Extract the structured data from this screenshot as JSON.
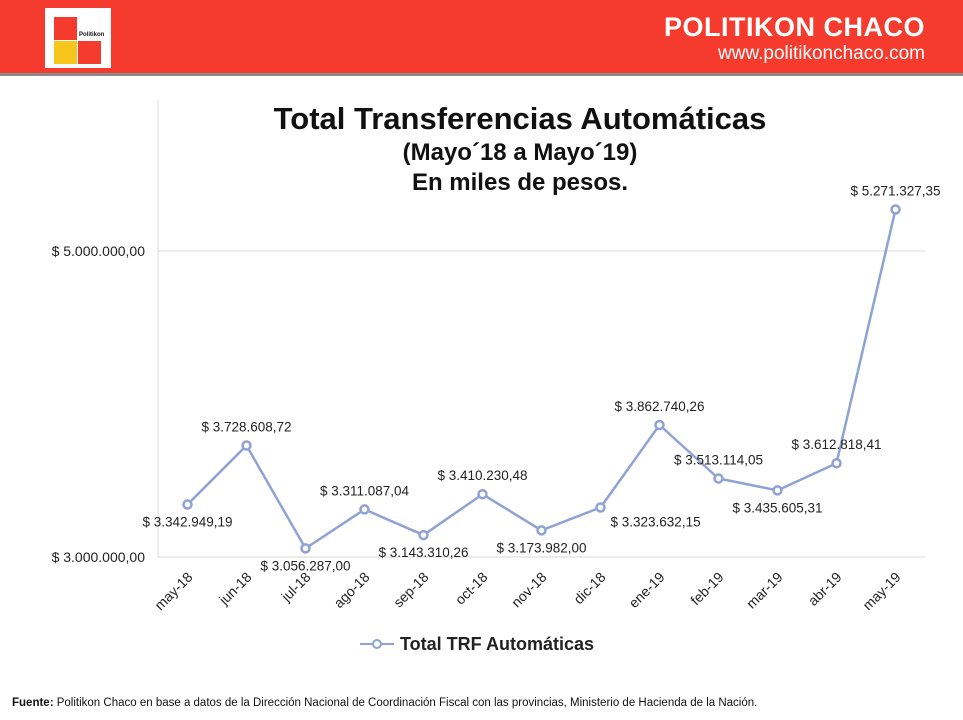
{
  "header": {
    "logo_text": "Politikon",
    "brand_name": "POLITIKON CHACO",
    "brand_url": "www.politikonchaco.com",
    "colors": {
      "header_bg": "#f53b2e",
      "logo_red": "#f53b2e",
      "logo_yellow": "#f8c51c"
    }
  },
  "chart_data": {
    "type": "line",
    "title": "Total Transferencias Automáticas",
    "subtitle": "(Mayo´18 a Mayo´19)",
    "subtitle2": "En miles de pesos.",
    "categories": [
      "may-18",
      "jun-18",
      "jul-18",
      "ago-18",
      "sep-18",
      "oct-18",
      "nov-18",
      "dic-18",
      "ene-19",
      "feb-19",
      "mar-19",
      "abr-19",
      "may-19"
    ],
    "series": [
      {
        "name": "Total TRF Automáticas",
        "color": "#8ea3d4",
        "values": [
          3342949.19,
          3728608.72,
          3056287.0,
          3311087.04,
          3143310.26,
          3410230.48,
          3173982.0,
          3323632.15,
          3862740.26,
          3513114.05,
          3435605.31,
          3612818.41,
          5271327.35
        ],
        "labels": [
          "$ 3.342.949,19",
          "$ 3.728.608,72",
          "$ 3.056.287,00",
          "$ 3.311.087,04",
          "$ 3.143.310,26",
          "$ 3.410.230,48",
          "$ 3.173.982,00",
          "$ 3.323.632,15",
          "$ 3.862.740,26",
          "$ 3.513.114,05",
          "$ 3.435.605,31",
          "$ 3.612.818,41",
          "$ 5.271.327,35"
        ]
      }
    ],
    "y_ticks": [
      3000000,
      5000000
    ],
    "y_tick_labels": [
      "$ 3.000.000,00",
      "$ 5.000.000,00"
    ],
    "ylim": [
      3000000,
      5400000
    ],
    "grid": true,
    "legend_position": "bottom"
  },
  "source": {
    "label": "Fuente:",
    "text": " Politikon Chaco en base a datos de la Dirección Nacional de Coordinación Fiscal con las provincias, Ministerio de Hacienda de la Nación."
  }
}
